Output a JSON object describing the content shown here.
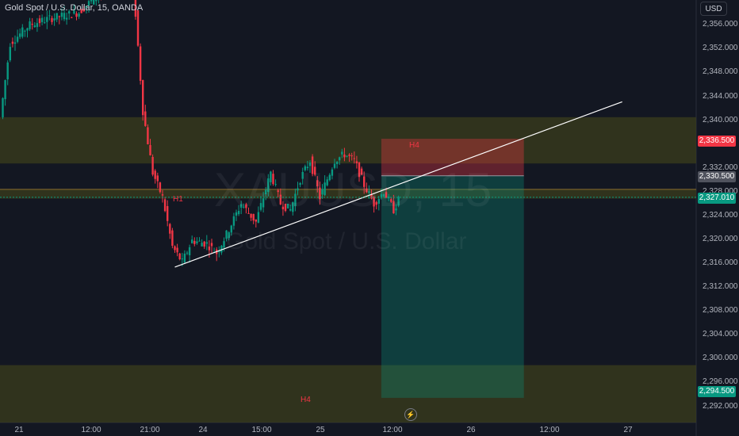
{
  "header": {
    "symbol_description": "Gold Spot / U.S. Dollar, 15, OANDA",
    "currency_button": "USD",
    "watermark_symbol": "XAUUSD, 15",
    "watermark_description": "Gold Spot / U.S. Dollar"
  },
  "colors": {
    "background": "#131722",
    "bull_candle": "#089981",
    "bear_candle": "#f23645",
    "zone_fill": "#3b3d1c",
    "stop_zone": "#f23645",
    "target_zone": "#089981",
    "trendline": "#ffffff"
  },
  "price_axis": {
    "labels": [
      "2,356.000",
      "2,352.000",
      "2,348.000",
      "2,344.000",
      "2,340.000",
      "2,332.000",
      "2,328.000",
      "2,324.000",
      "2,320.000",
      "2,316.000",
      "2,312.000",
      "2,308.000",
      "2,304.000",
      "2,300.000",
      "2,296.000",
      "2,292.000"
    ]
  },
  "time_axis": {
    "labels": [
      "21",
      "12:00",
      "21:00",
      "24",
      "15:00",
      "25",
      "12:00",
      "26",
      "12:00",
      "27"
    ]
  },
  "price_labels": {
    "stop": "2,336.500",
    "entry": "2,330.500",
    "current": "2,327.010",
    "target": "2,294.500"
  },
  "zone_labels": {
    "h1": "H1",
    "h4_top": "H4",
    "h4_bottom": "H4"
  },
  "chart_data": {
    "type": "candlestick",
    "symbol": "XAUUSD",
    "timeframe": "15",
    "exchange": "OANDA",
    "ylim": [
      2290.5,
      2359
    ],
    "x_dates": [
      "21",
      "12:00",
      "21:00",
      "24",
      "15:00",
      "25",
      "12:00",
      "26",
      "12:00",
      "27"
    ],
    "price_path": [
      {
        "t": 0,
        "p": 2340
      },
      {
        "t": 2,
        "p": 2352
      },
      {
        "t": 6,
        "p": 2355
      },
      {
        "t": 10,
        "p": 2356
      },
      {
        "t": 16,
        "p": 2357
      },
      {
        "t": 20,
        "p": 2360
      },
      {
        "t": 27,
        "p": 2362
      },
      {
        "t": 29,
        "p": 2341
      },
      {
        "t": 31,
        "p": 2331
      },
      {
        "t": 33,
        "p": 2327
      },
      {
        "t": 35,
        "p": 2319
      },
      {
        "t": 37,
        "p": 2316.5
      },
      {
        "t": 39,
        "p": 2320
      },
      {
        "t": 42,
        "p": 2319.5
      },
      {
        "t": 44,
        "p": 2318
      },
      {
        "t": 46,
        "p": 2321
      },
      {
        "t": 49,
        "p": 2326
      },
      {
        "t": 52,
        "p": 2323
      },
      {
        "t": 55,
        "p": 2331
      },
      {
        "t": 57,
        "p": 2326
      },
      {
        "t": 59,
        "p": 2325
      },
      {
        "t": 61,
        "p": 2330
      },
      {
        "t": 63,
        "p": 2333
      },
      {
        "t": 65,
        "p": 2327
      },
      {
        "t": 68,
        "p": 2333
      },
      {
        "t": 70,
        "p": 2334
      },
      {
        "t": 72,
        "p": 2333
      },
      {
        "t": 74,
        "p": 2329
      },
      {
        "t": 76,
        "p": 2326
      },
      {
        "t": 78,
        "p": 2328
      },
      {
        "t": 80,
        "p": 2325
      },
      {
        "t": 81,
        "p": 2326.5
      }
    ],
    "zones": [
      {
        "label": "",
        "from": 2332.5,
        "to": 2340
      },
      {
        "label": "H1",
        "from": 2326.8,
        "to": 2328.3
      },
      {
        "label": "H4",
        "from": 2290.5,
        "to": 2299.8
      }
    ],
    "trendline": {
      "points": [
        [
          35,
          2315.7
        ],
        [
          126,
          2342.5
        ]
      ]
    },
    "position": {
      "type": "short",
      "stop": 2336.5,
      "entry": 2330.5,
      "target": 2294.5,
      "from_t": 77,
      "to_t": 106
    },
    "last_price": 2327.01
  }
}
